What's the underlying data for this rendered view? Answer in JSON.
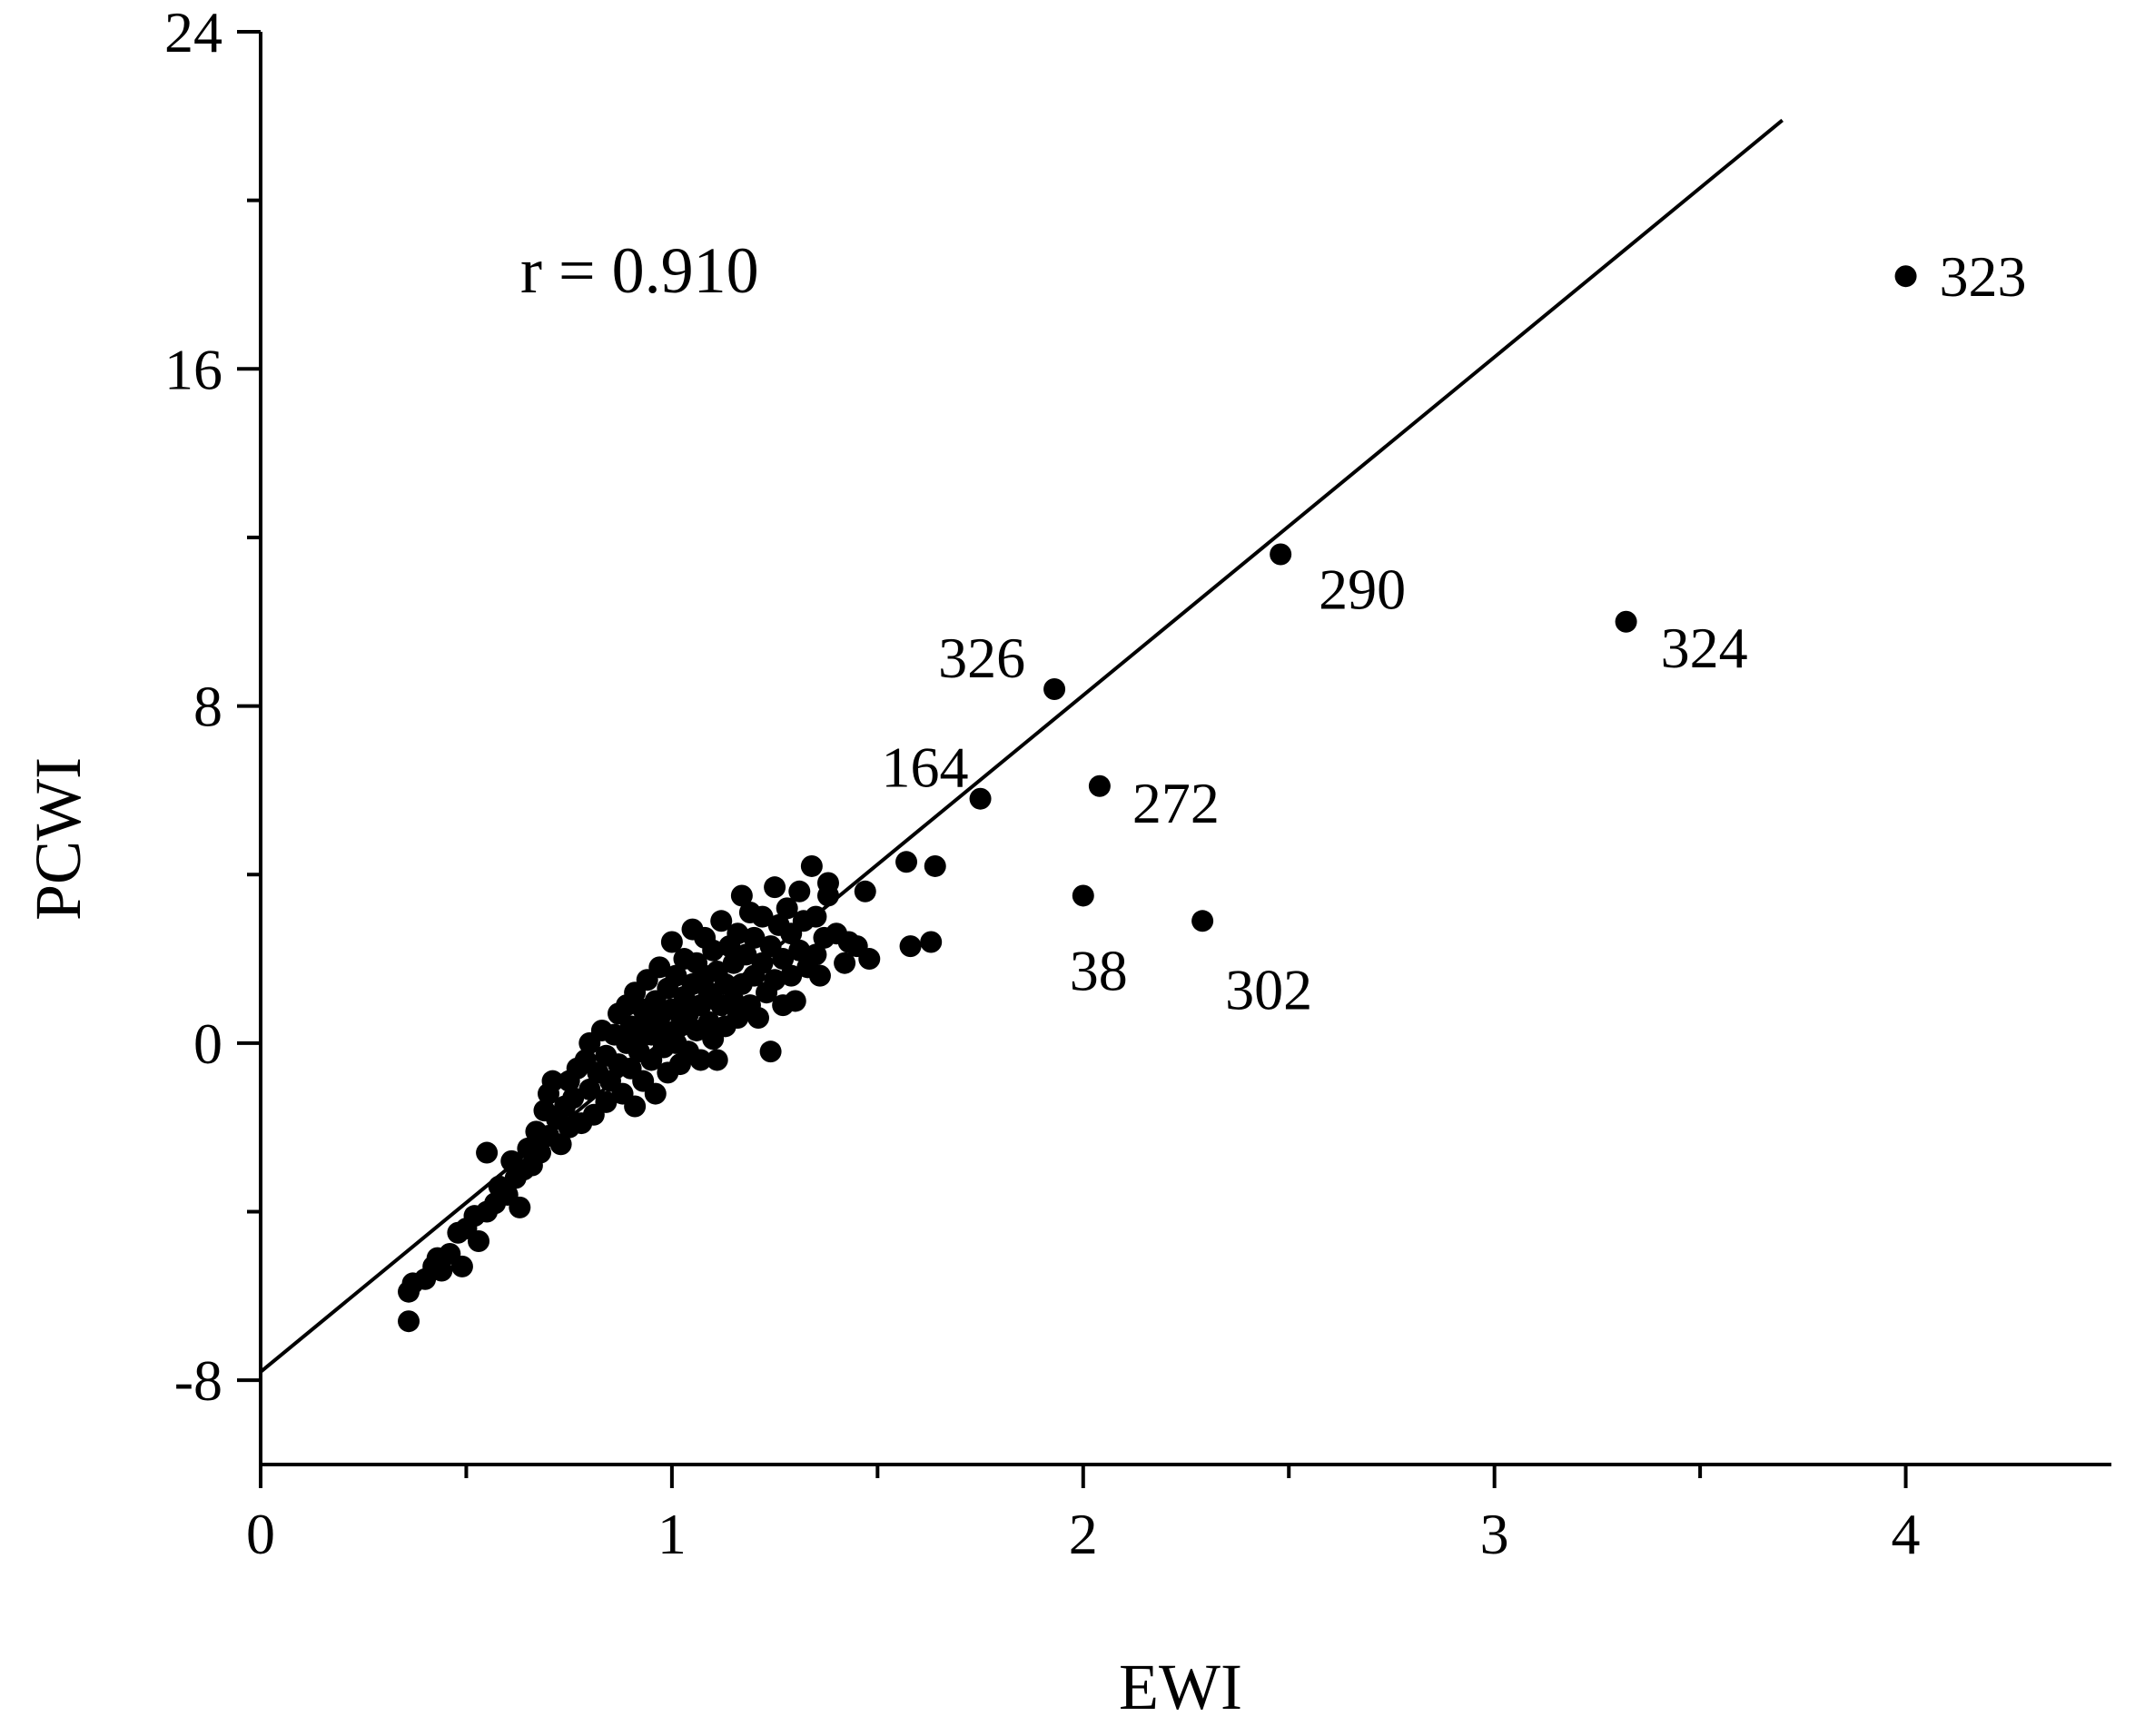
{
  "chart_data": {
    "type": "scatter",
    "xlabel": "EWI",
    "ylabel": "PCWI",
    "xlim": [
      0,
      4.5
    ],
    "ylim": [
      -10,
      24
    ],
    "xticks": [
      0,
      1,
      2,
      3,
      4
    ],
    "xminor_ticks": [
      0.5,
      1.5,
      2.5,
      3.5
    ],
    "yticks": [
      -8,
      0,
      8,
      16,
      24
    ],
    "yminor_ticks": [
      -4,
      4,
      12,
      20
    ],
    "grid": false,
    "annotation": "r = 0.910",
    "regression_line": {
      "x": [
        0,
        3.7
      ],
      "y": [
        -7.8,
        21.9
      ]
    },
    "labeled_points": [
      {
        "label": "323",
        "x": 4.0,
        "y": 18.2
      },
      {
        "label": "290",
        "x": 2.48,
        "y": 11.6
      },
      {
        "label": "324",
        "x": 3.32,
        "y": 10.0
      },
      {
        "label": "326",
        "x": 1.93,
        "y": 8.4
      },
      {
        "label": "164",
        "x": 1.75,
        "y": 5.8
      },
      {
        "label": "272",
        "x": 2.04,
        "y": 6.1
      },
      {
        "label": "38",
        "x": 2.0,
        "y": 3.5
      },
      {
        "label": "302",
        "x": 2.29,
        "y": 2.9
      }
    ],
    "points": [
      [
        0.36,
        -6.6
      ],
      [
        0.36,
        -5.9
      ],
      [
        0.37,
        -5.7
      ],
      [
        0.4,
        -5.6
      ],
      [
        0.42,
        -5.3
      ],
      [
        0.43,
        -5.1
      ],
      [
        0.44,
        -5.4
      ],
      [
        0.46,
        -5.0
      ],
      [
        0.48,
        -4.5
      ],
      [
        0.49,
        -5.3
      ],
      [
        0.5,
        -4.4
      ],
      [
        0.52,
        -4.1
      ],
      [
        0.53,
        -4.7
      ],
      [
        0.55,
        -4.0
      ],
      [
        0.55,
        -2.6
      ],
      [
        0.57,
        -3.8
      ],
      [
        0.58,
        -3.4
      ],
      [
        0.6,
        -3.6
      ],
      [
        0.61,
        -2.8
      ],
      [
        0.62,
        -3.2
      ],
      [
        0.63,
        -3.9
      ],
      [
        0.64,
        -3.0
      ],
      [
        0.65,
        -2.5
      ],
      [
        0.66,
        -2.9
      ],
      [
        0.67,
        -2.1
      ],
      [
        0.68,
        -2.6
      ],
      [
        0.69,
        -1.6
      ],
      [
        0.7,
        -2.2
      ],
      [
        0.7,
        -1.2
      ],
      [
        0.71,
        -0.9
      ],
      [
        0.72,
        -1.8
      ],
      [
        0.73,
        -2.4
      ],
      [
        0.74,
        -1.5
      ],
      [
        0.75,
        -0.9
      ],
      [
        0.75,
        -2.0
      ],
      [
        0.76,
        -1.3
      ],
      [
        0.77,
        -0.6
      ],
      [
        0.78,
        -1.9
      ],
      [
        0.79,
        -0.4
      ],
      [
        0.8,
        -1.1
      ],
      [
        0.8,
        0.0
      ],
      [
        0.81,
        -1.7
      ],
      [
        0.82,
        -0.7
      ],
      [
        0.83,
        0.3
      ],
      [
        0.84,
        -0.3
      ],
      [
        0.84,
        -1.4
      ],
      [
        0.85,
        -0.9
      ],
      [
        0.86,
        0.2
      ],
      [
        0.87,
        -0.5
      ],
      [
        0.87,
        0.7
      ],
      [
        0.88,
        -1.2
      ],
      [
        0.89,
        0.0
      ],
      [
        0.89,
        0.9
      ],
      [
        0.9,
        -0.6
      ],
      [
        0.9,
        0.4
      ],
      [
        0.91,
        -1.5
      ],
      [
        0.91,
        1.2
      ],
      [
        0.92,
        0.1
      ],
      [
        0.92,
        -0.2
      ],
      [
        0.93,
        0.8
      ],
      [
        0.93,
        -0.9
      ],
      [
        0.94,
        0.5
      ],
      [
        0.94,
        1.5
      ],
      [
        0.95,
        -0.4
      ],
      [
        0.95,
        0.2
      ],
      [
        0.96,
        1.0
      ],
      [
        0.96,
        -1.2
      ],
      [
        0.97,
        0.6
      ],
      [
        0.97,
        1.8
      ],
      [
        0.98,
        -0.1
      ],
      [
        0.98,
        0.3
      ],
      [
        0.99,
        1.3
      ],
      [
        0.99,
        -0.7
      ],
      [
        1.0,
        0.8
      ],
      [
        1.0,
        2.4
      ],
      [
        1.01,
        0.0
      ],
      [
        1.01,
        1.6
      ],
      [
        1.02,
        0.4
      ],
      [
        1.02,
        -0.5
      ],
      [
        1.03,
        1.1
      ],
      [
        1.03,
        2.0
      ],
      [
        1.04,
        0.7
      ],
      [
        1.04,
        -0.2
      ],
      [
        1.05,
        1.4
      ],
      [
        1.05,
        2.7
      ],
      [
        1.06,
        0.3
      ],
      [
        1.06,
        1.9
      ],
      [
        1.07,
        0.9
      ],
      [
        1.07,
        -0.4
      ],
      [
        1.08,
        1.6
      ],
      [
        1.08,
        2.5
      ],
      [
        1.09,
        0.5
      ],
      [
        1.09,
        1.2
      ],
      [
        1.1,
        2.2
      ],
      [
        1.1,
        0.1
      ],
      [
        1.11,
        1.7
      ],
      [
        1.11,
        -0.4
      ],
      [
        1.12,
        0.9
      ],
      [
        1.12,
        2.9
      ],
      [
        1.13,
        1.4
      ],
      [
        1.13,
        0.4
      ],
      [
        1.14,
        2.3
      ],
      [
        1.15,
        1.0
      ],
      [
        1.15,
        1.9
      ],
      [
        1.16,
        2.6
      ],
      [
        1.16,
        0.6
      ],
      [
        1.17,
        3.5
      ],
      [
        1.17,
        1.4
      ],
      [
        1.18,
        2.1
      ],
      [
        1.19,
        0.9
      ],
      [
        1.19,
        3.1
      ],
      [
        1.2,
        1.6
      ],
      [
        1.2,
        2.5
      ],
      [
        1.21,
        0.6
      ],
      [
        1.22,
        1.9
      ],
      [
        1.22,
        3.0
      ],
      [
        1.23,
        1.2
      ],
      [
        1.24,
        -0.2
      ],
      [
        1.24,
        2.3
      ],
      [
        1.25,
        3.7
      ],
      [
        1.25,
        1.5
      ],
      [
        1.26,
        2.8
      ],
      [
        1.27,
        0.9
      ],
      [
        1.27,
        2.0
      ],
      [
        1.28,
        3.2
      ],
      [
        1.29,
        1.6
      ],
      [
        1.29,
        2.6
      ],
      [
        1.3,
        1.0
      ],
      [
        1.31,
        3.6
      ],
      [
        1.31,
        2.2
      ],
      [
        1.32,
        2.9
      ],
      [
        1.33,
        1.8
      ],
      [
        1.34,
        4.2
      ],
      [
        1.35,
        3.0
      ],
      [
        1.35,
        2.1
      ],
      [
        1.36,
        1.6
      ],
      [
        1.37,
        2.5
      ],
      [
        1.38,
        3.5
      ],
      [
        1.38,
        3.8
      ],
      [
        1.4,
        2.6
      ],
      [
        1.42,
        1.9
      ],
      [
        1.43,
        2.4
      ],
      [
        1.45,
        2.3
      ],
      [
        1.47,
        3.6
      ],
      [
        1.48,
        2.0
      ],
      [
        1.57,
        4.3
      ],
      [
        1.58,
        2.3
      ],
      [
        1.63,
        2.4
      ],
      [
        1.64,
        4.2
      ],
      [
        1.75,
        5.8
      ],
      [
        1.93,
        8.4
      ],
      [
        2.0,
        3.5
      ],
      [
        2.04,
        6.1
      ],
      [
        2.29,
        2.9
      ],
      [
        2.48,
        11.6
      ],
      [
        3.32,
        10.0
      ],
      [
        4.0,
        18.2
      ]
    ]
  }
}
